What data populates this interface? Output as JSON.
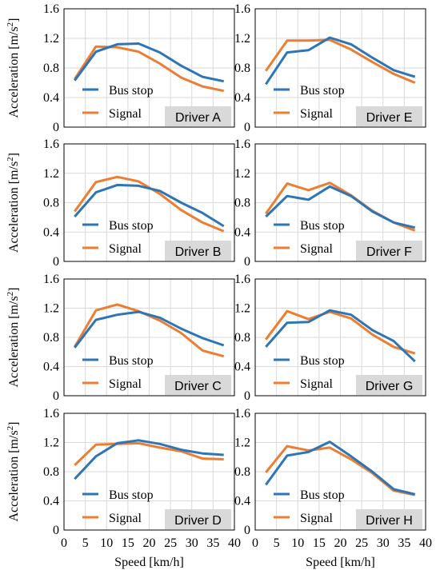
{
  "axes": {
    "ylabel": "Acceleration [m/s",
    "ylabel_sup": "2",
    "ylabel_end": "]",
    "xlabel": "Speed [km/h]",
    "y_ticks": [
      "0",
      "0.4",
      "0.8",
      "1.2",
      "1.6"
    ],
    "x_ticks": [
      "0",
      "5",
      "10",
      "15",
      "20",
      "25",
      "30",
      "35",
      "40"
    ]
  },
  "legend": {
    "bus_stop": "Bus stop",
    "signal": "Signal"
  },
  "colors": {
    "bus_stop": "#2e75b6",
    "signal": "#ed7d31",
    "label_bg": "#d9d9d9",
    "grid": "#d9d9d9"
  },
  "chart_data": [
    {
      "type": "line",
      "title": "Driver A",
      "xlabel": "Speed [km/h]",
      "ylabel": "Acceleration [m/s2]",
      "xlim": [
        0,
        40
      ],
      "ylim": [
        0,
        1.6
      ],
      "grid": true,
      "legend": "center",
      "x": [
        2.5,
        7.5,
        12.5,
        17.5,
        22.5,
        27.5,
        32.5,
        37.5
      ],
      "series": [
        {
          "name": "Bus stop",
          "values": [
            0.63,
            1.02,
            1.12,
            1.13,
            1.01,
            0.83,
            0.68,
            0.62
          ]
        },
        {
          "name": "Signal",
          "values": [
            0.65,
            1.09,
            1.08,
            1.02,
            0.86,
            0.67,
            0.55,
            0.49
          ]
        }
      ]
    },
    {
      "type": "line",
      "title": "Driver E",
      "xlabel": "Speed [km/h]",
      "ylabel": "Acceleration [m/s2]",
      "xlim": [
        0,
        40
      ],
      "ylim": [
        0,
        1.6
      ],
      "grid": true,
      "legend": "center",
      "x": [
        2.5,
        7.5,
        12.5,
        17.5,
        22.5,
        27.5,
        32.5,
        37.5
      ],
      "series": [
        {
          "name": "Bus stop",
          "values": [
            0.58,
            1.01,
            1.04,
            1.21,
            1.12,
            0.94,
            0.77,
            0.68
          ]
        },
        {
          "name": "Signal",
          "values": [
            0.76,
            1.17,
            1.17,
            1.18,
            1.05,
            0.88,
            0.72,
            0.6
          ]
        }
      ]
    },
    {
      "type": "line",
      "title": "Driver B",
      "xlabel": "Speed [km/h]",
      "ylabel": "Acceleration [m/s2]",
      "xlim": [
        0,
        40
      ],
      "ylim": [
        0,
        1.6
      ],
      "grid": true,
      "legend": "center",
      "x": [
        2.5,
        7.5,
        12.5,
        17.5,
        22.5,
        27.5,
        32.5,
        37.5
      ],
      "series": [
        {
          "name": "Bus stop",
          "values": [
            0.61,
            0.94,
            1.04,
            1.03,
            0.96,
            0.8,
            0.66,
            0.48
          ]
        },
        {
          "name": "Signal",
          "values": [
            0.68,
            1.08,
            1.15,
            1.09,
            0.92,
            0.7,
            0.53,
            0.41
          ]
        }
      ]
    },
    {
      "type": "line",
      "title": "Driver F",
      "xlabel": "Speed [km/h]",
      "ylabel": "Acceleration [m/s2]",
      "xlim": [
        0,
        40
      ],
      "ylim": [
        0,
        1.6
      ],
      "grid": true,
      "legend": "center",
      "x": [
        2.5,
        7.5,
        12.5,
        17.5,
        22.5,
        27.5,
        32.5,
        37.5
      ],
      "series": [
        {
          "name": "Bus stop",
          "values": [
            0.61,
            0.89,
            0.84,
            1.02,
            0.89,
            0.68,
            0.53,
            0.46
          ]
        },
        {
          "name": "Signal",
          "values": [
            0.65,
            1.06,
            0.97,
            1.07,
            0.9,
            0.69,
            0.53,
            0.42
          ]
        }
      ]
    },
    {
      "type": "line",
      "title": "Driver C",
      "xlabel": "Speed [km/h]",
      "ylabel": "Acceleration [m/s2]",
      "xlim": [
        0,
        40
      ],
      "ylim": [
        0,
        1.6
      ],
      "grid": true,
      "legend": "center",
      "x": [
        2.5,
        7.5,
        12.5,
        17.5,
        22.5,
        27.5,
        32.5,
        37.5
      ],
      "series": [
        {
          "name": "Bus stop",
          "values": [
            0.66,
            1.04,
            1.11,
            1.15,
            1.07,
            0.92,
            0.79,
            0.69
          ]
        },
        {
          "name": "Signal",
          "values": [
            0.67,
            1.17,
            1.25,
            1.16,
            1.03,
            0.86,
            0.62,
            0.54
          ]
        }
      ]
    },
    {
      "type": "line",
      "title": "Driver G",
      "xlabel": "Speed [km/h]",
      "ylabel": "Acceleration [m/s2]",
      "xlim": [
        0,
        40
      ],
      "ylim": [
        0,
        1.6
      ],
      "grid": true,
      "legend": "center",
      "x": [
        2.5,
        7.5,
        12.5,
        17.5,
        22.5,
        27.5,
        32.5,
        37.5
      ],
      "series": [
        {
          "name": "Bus stop",
          "values": [
            0.67,
            1.0,
            1.01,
            1.17,
            1.11,
            0.9,
            0.75,
            0.47
          ]
        },
        {
          "name": "Signal",
          "values": [
            0.77,
            1.16,
            1.05,
            1.15,
            1.06,
            0.84,
            0.67,
            0.58
          ]
        }
      ]
    },
    {
      "type": "line",
      "title": "Driver D",
      "xlabel": "Speed [km/h]",
      "ylabel": "Acceleration [m/s2]",
      "xlim": [
        0,
        40
      ],
      "ylim": [
        0,
        1.6
      ],
      "grid": true,
      "legend": "center",
      "x": [
        2.5,
        7.5,
        12.5,
        17.5,
        22.5,
        27.5,
        32.5,
        37.5
      ],
      "series": [
        {
          "name": "Bus stop",
          "values": [
            0.7,
            1.01,
            1.19,
            1.23,
            1.18,
            1.1,
            1.05,
            1.03
          ]
        },
        {
          "name": "Signal",
          "values": [
            0.89,
            1.17,
            1.18,
            1.19,
            1.13,
            1.08,
            0.98,
            0.97
          ]
        }
      ]
    },
    {
      "type": "line",
      "title": "Driver H",
      "xlabel": "Speed [km/h]",
      "ylabel": "Acceleration [m/s2]",
      "xlim": [
        0,
        40
      ],
      "ylim": [
        0,
        1.6
      ],
      "grid": true,
      "legend": "center",
      "x": [
        2.5,
        7.5,
        12.5,
        17.5,
        22.5,
        27.5,
        32.5,
        37.5
      ],
      "series": [
        {
          "name": "Bus stop",
          "values": [
            0.62,
            1.02,
            1.07,
            1.21,
            1.01,
            0.8,
            0.56,
            0.49
          ]
        },
        {
          "name": "Signal",
          "values": [
            0.79,
            1.15,
            1.09,
            1.13,
            0.97,
            0.78,
            0.54,
            0.48
          ]
        }
      ]
    }
  ]
}
